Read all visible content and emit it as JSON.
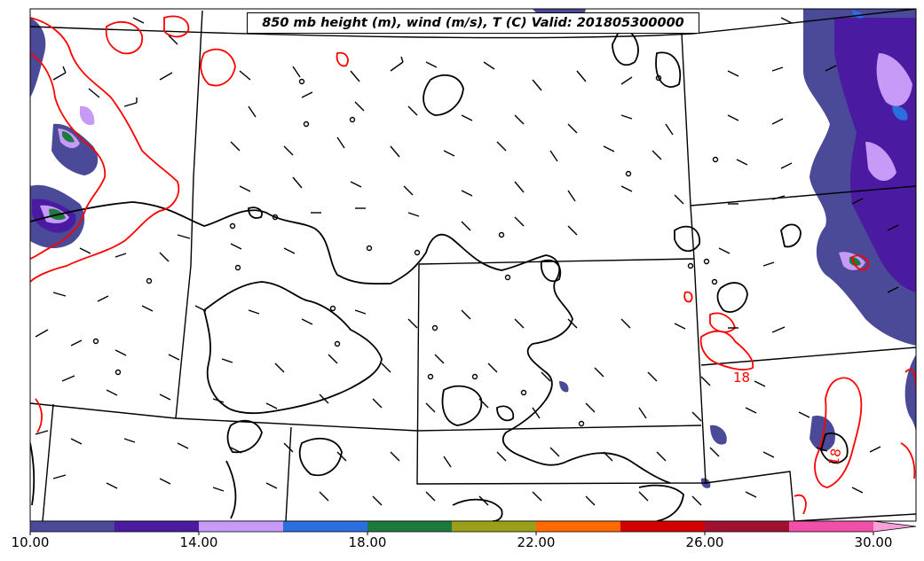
{
  "title": "850 mb height (m), wind (m/s), T (C) Valid: 201805300000",
  "colorbar": {
    "ticks": [
      "10.00",
      "14.00",
      "18.00",
      "22.00",
      "26.00",
      "30.00"
    ],
    "colors": [
      "#4a4a98",
      "#4a1aa0",
      "#c89af8",
      "#2a6ee0",
      "#1e7a3c",
      "#9aa01a",
      "#ff6a00",
      "#d40000",
      "#a01030",
      "#f050a8",
      "#f8a0d8"
    ]
  },
  "contour_labels": [
    "18",
    "18"
  ],
  "colors": {
    "temperature_contour": "#ff0000",
    "height_contour": "#000000",
    "boundary": "#000000"
  }
}
